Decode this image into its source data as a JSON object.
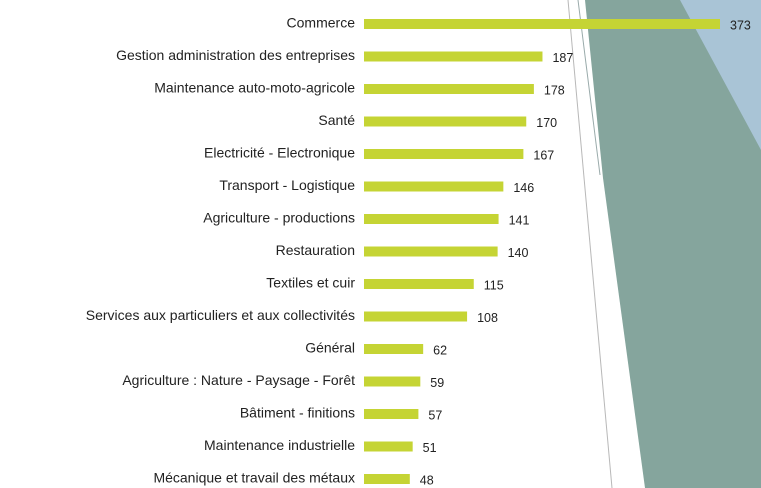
{
  "chart_data": {
    "type": "bar",
    "orientation": "horizontal",
    "color": "#c5d434",
    "categories": [
      "Commerce",
      "Gestion administration des entreprises",
      "Maintenance auto-moto-agricole",
      "Santé",
      "Electricité - Electronique",
      "Transport - Logistique",
      "Agriculture - productions ",
      "Restauration",
      "Textiles et cuir",
      "Services aux particuliers et aux collectivités",
      "Général",
      "Agriculture : Nature - Paysage - Forêt",
      "Bâtiment - finitions",
      "Maintenance industrielle",
      "Mécanique et travail des métaux"
    ],
    "values": [
      373,
      187,
      178,
      170,
      167,
      146,
      141,
      140,
      115,
      108,
      62,
      59,
      57,
      51,
      48
    ]
  }
}
